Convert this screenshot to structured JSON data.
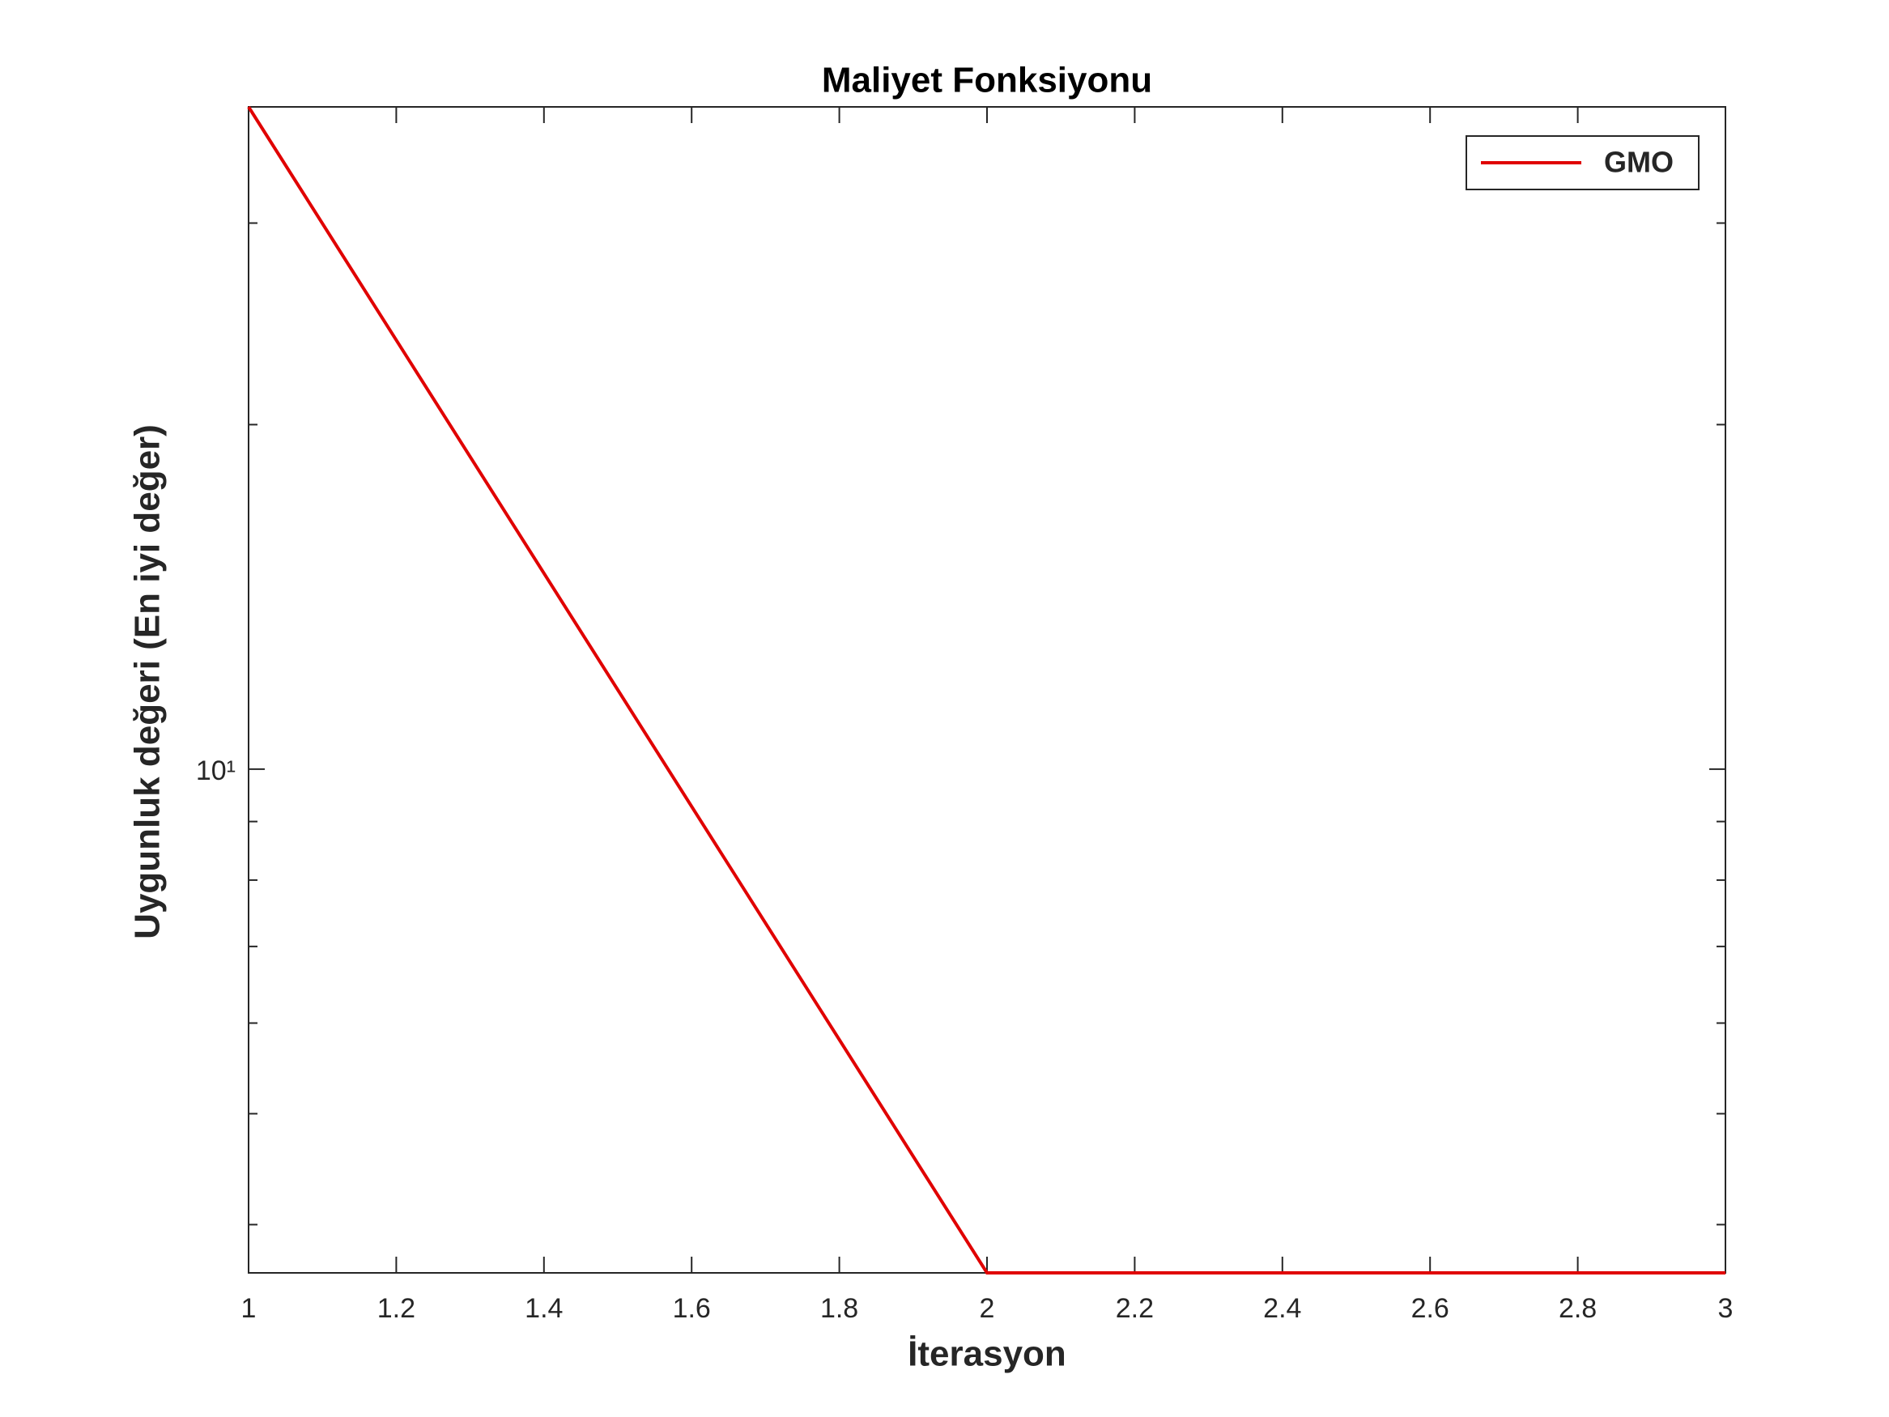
{
  "chart_data": {
    "type": "line",
    "title": "Maliyet Fonksiyonu",
    "x_label": "İterasyon",
    "y_label": "Uygunluk değeri (En iyi değer)",
    "x": [
      1,
      2,
      3
    ],
    "series": [
      {
        "name": "GMO",
        "color": "#e00000",
        "values": [
          37.9,
          3.63,
          3.63
        ]
      }
    ],
    "xlim": [
      1,
      3
    ],
    "xticks": [
      1,
      1.2,
      1.4,
      1.6,
      1.8,
      2,
      2.2,
      2.4,
      2.6,
      2.8,
      3
    ],
    "ylim": [
      3.63,
      37.9
    ],
    "yticks": [
      {
        "value": 10,
        "label": "10¹"
      }
    ],
    "yminor_ticks": [
      4,
      5,
      6,
      7,
      8,
      9,
      20,
      30
    ],
    "y_scale": "log",
    "grid": false,
    "legend": "upper right"
  }
}
